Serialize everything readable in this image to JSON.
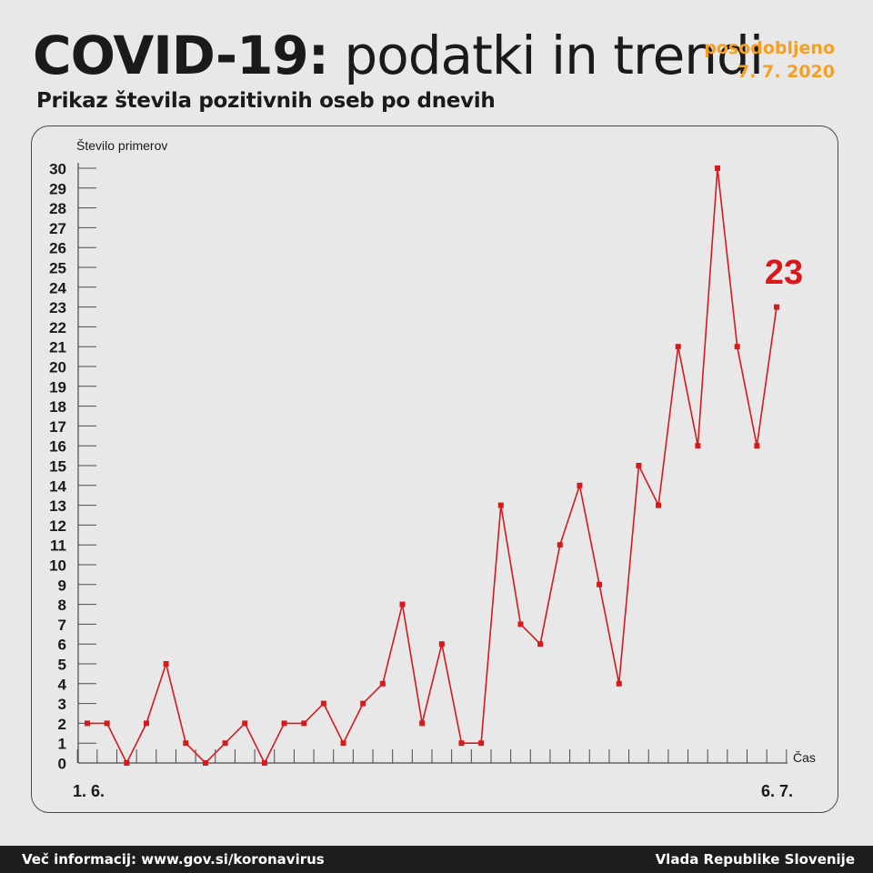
{
  "header": {
    "title_bold": "COVID-19:",
    "title_light": "podatki in trendi",
    "updated_label": "posodobljeno",
    "updated_date": "7. 7. 2020",
    "subtitle": "Prikaz števila pozitivnih oseb po dnevih"
  },
  "footer": {
    "info": "Več informacij: www.gov.si/koronavirus",
    "org": "Vlada Republike Slovenije"
  },
  "colors": {
    "accent": "#f5a024",
    "line": "#d7191c",
    "highlight": "#d7191c",
    "footer_bg": "#1d1d1b"
  },
  "chart_data": {
    "type": "line",
    "ylabel": "Število primerov",
    "xlabel": "Čas",
    "x_start_label": "1. 6.",
    "x_end_label": "6. 7.",
    "ylim": [
      0,
      30
    ],
    "grid": false,
    "last_value_label": "23",
    "series": [
      {
        "values": [
          2,
          2,
          0,
          2,
          5,
          1,
          0,
          1,
          2,
          0,
          2,
          2,
          3,
          1,
          3,
          4,
          8,
          2,
          6,
          1,
          1,
          13,
          7,
          6,
          11,
          14,
          9,
          4,
          15,
          13,
          21,
          16,
          30,
          21,
          16,
          23
        ]
      }
    ]
  }
}
